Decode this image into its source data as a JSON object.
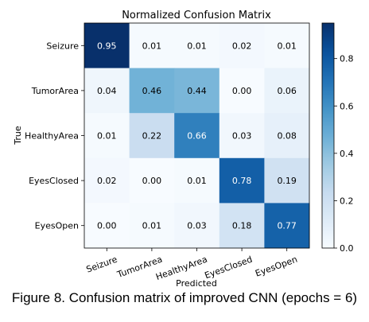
{
  "chart_data": {
    "type": "heatmap",
    "title": "Normalized Confusion Matrix",
    "xlabel": "Predicted",
    "ylabel": "True",
    "x_categories": [
      "Seizure",
      "TumorArea",
      "HealthyArea",
      "EyesClosed",
      "EyesOpen"
    ],
    "y_categories": [
      "Seizure",
      "TumorArea",
      "HealthyArea",
      "EyesClosed",
      "EyesOpen"
    ],
    "values": [
      [
        0.95,
        0.01,
        0.01,
        0.02,
        0.01
      ],
      [
        0.04,
        0.46,
        0.44,
        0.0,
        0.06
      ],
      [
        0.01,
        0.22,
        0.66,
        0.03,
        0.08
      ],
      [
        0.02,
        0.0,
        0.01,
        0.78,
        0.19
      ],
      [
        0.0,
        0.01,
        0.03,
        0.18,
        0.77
      ]
    ],
    "colormap": "Blues",
    "colorbar": {
      "range": [
        0.0,
        0.95
      ],
      "ticks": [
        0.0,
        0.2,
        0.4,
        0.6,
        0.8
      ]
    }
  },
  "caption": "Figure 8. Confusion matrix of improved CNN (epochs = 6)"
}
